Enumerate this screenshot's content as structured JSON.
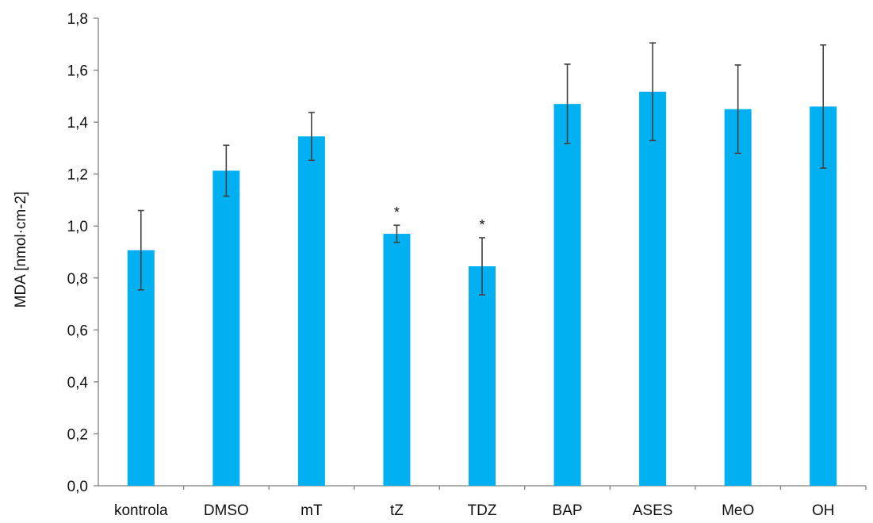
{
  "chart_data": {
    "type": "bar",
    "title": "",
    "xlabel": "",
    "ylabel": "MDA [nmol·cm-2]",
    "categories": [
      "kontrola",
      "DMSO",
      "mT",
      "tZ",
      "TDZ",
      "BAP",
      "ASES",
      "MeO",
      "OH"
    ],
    "values": [
      0.907,
      1.213,
      1.345,
      0.97,
      0.845,
      1.47,
      1.517,
      1.45,
      1.46
    ],
    "errors": [
      0.153,
      0.098,
      0.092,
      0.033,
      0.11,
      0.153,
      0.188,
      0.17,
      0.237
    ],
    "annotations": [
      "",
      "",
      "",
      "*",
      "*",
      "",
      "",
      "",
      ""
    ],
    "ylim": [
      0,
      1.8
    ],
    "yticks": [
      "0,0",
      "0,2",
      "0,4",
      "0,6",
      "0,8",
      "1,0",
      "1,2",
      "1,4",
      "1,6",
      "1,8"
    ],
    "grid": false,
    "legend": "none",
    "bar_color": "#00b0f0",
    "error_bar_color": "#404040"
  }
}
